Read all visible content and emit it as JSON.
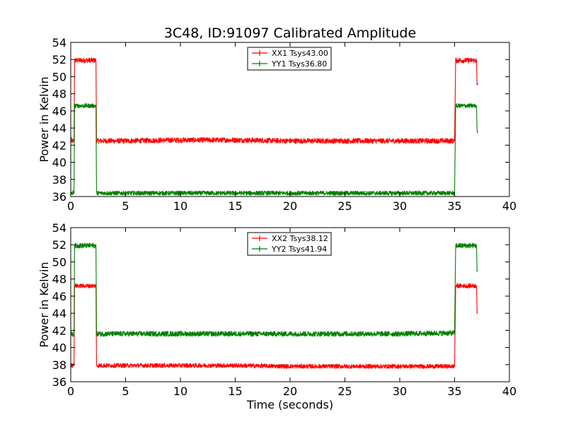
{
  "figure": {
    "title": "3C48, ID:91097 Calibrated Amplitude",
    "xlabel": "Time (seconds)"
  },
  "colors": {
    "xx": "#ff0000",
    "yy": "#008000",
    "axes": "#000000",
    "background": "#ffffff"
  },
  "chart_data": [
    {
      "type": "line",
      "title": "3C48, ID:91097 Calibrated Amplitude",
      "xlabel": "",
      "ylabel": "Power in Kelvin",
      "xlim": [
        0,
        40
      ],
      "ylim": [
        36,
        54
      ],
      "xticks": [
        0,
        5,
        10,
        15,
        20,
        25,
        30,
        35,
        40
      ],
      "yticks": [
        36,
        38,
        40,
        42,
        44,
        46,
        48,
        50,
        52,
        54
      ],
      "grid": false,
      "legend_position": "top-center",
      "series": [
        {
          "name": "XX1 Tsys43.00",
          "color": "#ff0000",
          "x": [
            0.0,
            0.05,
            0.1,
            0.15,
            0.2,
            0.25,
            0.3,
            0.35,
            0.4,
            2.3,
            2.35,
            2.4,
            5,
            10,
            15,
            20,
            25,
            30,
            34.9,
            35.0,
            35.1,
            37.0,
            37.05,
            37.1
          ],
          "y": [
            42.5,
            42.6,
            42.5,
            42.5,
            42.4,
            42.6,
            42.5,
            51.9,
            51.9,
            51.9,
            42.6,
            42.5,
            42.5,
            42.6,
            42.6,
            42.5,
            42.5,
            42.5,
            42.5,
            42.5,
            51.9,
            51.9,
            49.0,
            49.0
          ],
          "noise": 0.3
        },
        {
          "name": "YY1 Tsys36.80",
          "color": "#008000",
          "x": [
            0.0,
            0.05,
            0.1,
            0.15,
            0.2,
            0.25,
            0.3,
            0.35,
            0.4,
            2.3,
            2.35,
            2.4,
            5,
            10,
            15,
            20,
            25,
            30,
            34.9,
            35.0,
            35.1,
            37.0,
            37.05,
            37.1
          ],
          "y": [
            36.5,
            36.4,
            36.3,
            36.4,
            36.5,
            36.4,
            36.4,
            46.6,
            46.6,
            46.6,
            36.4,
            36.4,
            36.4,
            36.4,
            36.4,
            36.4,
            36.4,
            36.4,
            36.4,
            36.4,
            46.6,
            46.6,
            43.6,
            43.6
          ],
          "noise": 0.25
        }
      ]
    },
    {
      "type": "line",
      "title": "",
      "xlabel": "Time (seconds)",
      "ylabel": "Power in Kelvin",
      "xlim": [
        0,
        40
      ],
      "ylim": [
        36,
        54
      ],
      "xticks": [
        0,
        5,
        10,
        15,
        20,
        25,
        30,
        35,
        40
      ],
      "yticks": [
        36,
        38,
        40,
        42,
        44,
        46,
        48,
        50,
        52,
        54
      ],
      "grid": false,
      "legend_position": "top-center",
      "series": [
        {
          "name": "XX2 Tsys38.12",
          "color": "#ff0000",
          "x": [
            0.0,
            0.05,
            0.1,
            0.15,
            0.2,
            0.25,
            0.3,
            0.35,
            0.4,
            2.3,
            2.35,
            2.4,
            5,
            10,
            15,
            20,
            25,
            30,
            34.9,
            35.0,
            35.1,
            37.0,
            37.05,
            37.1
          ],
          "y": [
            38.0,
            37.9,
            38.0,
            37.9,
            38.0,
            38.0,
            37.9,
            47.2,
            47.2,
            47.2,
            37.9,
            37.9,
            37.9,
            37.9,
            37.9,
            37.8,
            37.8,
            37.8,
            37.8,
            37.8,
            47.2,
            47.2,
            44.2,
            44.2
          ],
          "noise": 0.25
        },
        {
          "name": "YY2 Tsys41.94",
          "color": "#008000",
          "x": [
            0.0,
            0.05,
            0.1,
            0.15,
            0.2,
            0.25,
            0.3,
            0.35,
            0.4,
            2.3,
            2.35,
            2.4,
            5,
            10,
            15,
            20,
            25,
            30,
            34.9,
            35.0,
            35.1,
            37.0,
            37.05,
            37.1
          ],
          "y": [
            41.6,
            41.5,
            41.6,
            41.6,
            41.5,
            41.6,
            41.6,
            51.9,
            51.9,
            51.9,
            41.6,
            41.6,
            41.6,
            41.6,
            41.6,
            41.6,
            41.6,
            41.6,
            41.7,
            41.7,
            51.9,
            51.9,
            49.0,
            49.0
          ],
          "noise": 0.3
        }
      ]
    }
  ]
}
